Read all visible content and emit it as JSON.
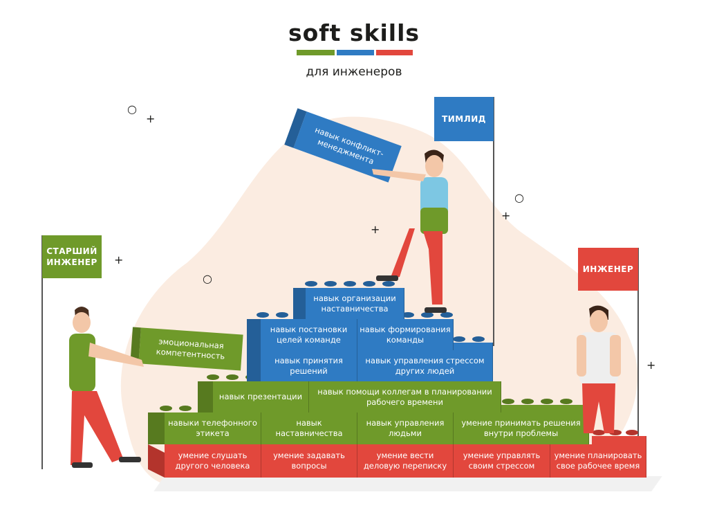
{
  "header": {
    "title": "soft skills",
    "subtitle": "для инженеров"
  },
  "flags": {
    "senior": "СТАРШИЙ\nИНЖЕНЕР",
    "teamlead": "ТИМЛИД",
    "engineer": "ИНЖЕНЕР"
  },
  "colors": {
    "green": "#6f9a2a",
    "blue": "#2f7bc3",
    "red": "#e2473d"
  },
  "rows": {
    "red": [
      "умение слушать другого человека",
      "умение задавать вопросы",
      "умение вести деловую переписку",
      "умение управлять своим стрессом",
      "умение планировать свое рабочее время"
    ],
    "green": [
      "навыки телефонного этикета",
      "навык наставничества",
      "навык управления людьми",
      "умение принимать решения внутри проблемы"
    ],
    "green2": [
      "навык презентации",
      "навык помощи коллегам в планировании рабочего времени"
    ],
    "blue1": [
      "навык принятия решений",
      "навык управления стрессом других людей"
    ],
    "blue2": [
      "навык постановки целей команде",
      "навык формирования команды"
    ],
    "blue3": [
      "навык организации наставничества"
    ]
  },
  "carried": {
    "green": "эмоциональная компетентность",
    "blue": "навык конфликт-менеджмента"
  }
}
